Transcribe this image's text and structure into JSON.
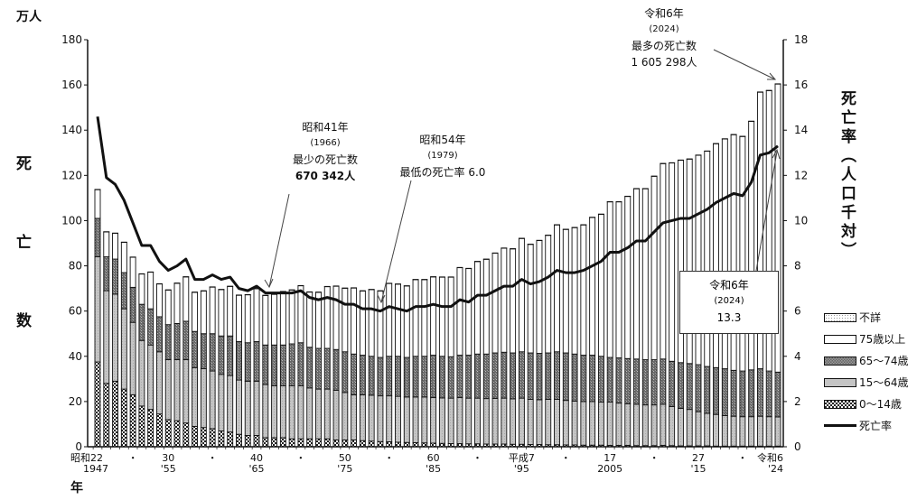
{
  "chart_data": {
    "type": "bar+line",
    "left_axis": {
      "unit_label": "万人",
      "title": "死 亡 数",
      "range": [
        0,
        180
      ],
      "ticks": [
        0,
        20,
        40,
        60,
        80,
        100,
        120,
        140,
        160,
        180
      ]
    },
    "right_axis": {
      "title": "死亡率（人口千対）",
      "range": [
        0,
        18
      ],
      "ticks": [
        0,
        2,
        4,
        6,
        8,
        10,
        12,
        14,
        16,
        18
      ]
    },
    "x_axis_unit": "年",
    "x_tick_labels": [
      {
        "year": 1947,
        "top": "昭和22",
        "bottom": "1947"
      },
      {
        "year": 1951,
        "top": "・",
        "bottom": ""
      },
      {
        "year": 1955,
        "top": "30",
        "bottom": "'55"
      },
      {
        "year": 1960,
        "top": "・",
        "bottom": ""
      },
      {
        "year": 1965,
        "top": "40",
        "bottom": "'65"
      },
      {
        "year": 1970,
        "top": "・",
        "bottom": ""
      },
      {
        "year": 1975,
        "top": "50",
        "bottom": "'75"
      },
      {
        "year": 1980,
        "top": "・",
        "bottom": ""
      },
      {
        "year": 1985,
        "top": "60",
        "bottom": "'85"
      },
      {
        "year": 1990,
        "top": "・",
        "bottom": ""
      },
      {
        "year": 1995,
        "top": "平成7",
        "bottom": "'95"
      },
      {
        "year": 2000,
        "top": "・",
        "bottom": ""
      },
      {
        "year": 2005,
        "top": "17",
        "bottom": "2005"
      },
      {
        "year": 2010,
        "top": "・",
        "bottom": ""
      },
      {
        "year": 2015,
        "top": "27",
        "bottom": "'15"
      },
      {
        "year": 2020,
        "top": "・",
        "bottom": ""
      },
      {
        "year": 2024,
        "top": "令和6",
        "bottom": "'24"
      }
    ],
    "years": [
      1947,
      1948,
      1949,
      1950,
      1951,
      1952,
      1953,
      1954,
      1955,
      1956,
      1957,
      1958,
      1959,
      1960,
      1961,
      1962,
      1963,
      1964,
      1965,
      1966,
      1967,
      1968,
      1969,
      1970,
      1971,
      1972,
      1973,
      1974,
      1975,
      1976,
      1977,
      1978,
      1979,
      1980,
      1981,
      1982,
      1983,
      1984,
      1985,
      1986,
      1987,
      1988,
      1989,
      1990,
      1991,
      1992,
      1993,
      1994,
      1995,
      1996,
      1997,
      1998,
      1999,
      2000,
      2001,
      2002,
      2003,
      2004,
      2005,
      2006,
      2007,
      2008,
      2009,
      2010,
      2011,
      2012,
      2013,
      2014,
      2015,
      2016,
      2017,
      2018,
      2019,
      2020,
      2021,
      2022,
      2023,
      2024
    ],
    "series": [
      {
        "name": "0～14歳",
        "pattern": "checker",
        "values": [
          37.5,
          28,
          29,
          25.5,
          23,
          18,
          16.5,
          14.5,
          12,
          11.5,
          10.5,
          9,
          8.5,
          8,
          7,
          6.5,
          5.5,
          5,
          5,
          4,
          4,
          4,
          3.5,
          3.5,
          3.5,
          3.5,
          3.5,
          3,
          3,
          3,
          2.7,
          2.5,
          2.3,
          2.2,
          2.0,
          1.9,
          1.8,
          1.7,
          1.6,
          1.5,
          1.4,
          1.4,
          1.3,
          1.3,
          1.2,
          1.2,
          1.2,
          1.1,
          1.1,
          1.0,
          1.0,
          0.9,
          0.9,
          0.8,
          0.8,
          0.7,
          0.7,
          0.7,
          0.6,
          0.6,
          0.6,
          0.5,
          0.5,
          0.5,
          0.6,
          0.5,
          0.4,
          0.4,
          0.4,
          0.4,
          0.3,
          0.3,
          0.3,
          0.3,
          0.3,
          0.3,
          0.3,
          0.3
        ]
      },
      {
        "name": "15～64歳",
        "pattern": "light",
        "values": [
          46.5,
          41,
          38.5,
          35.5,
          32,
          29,
          28.5,
          27.5,
          26.5,
          27,
          28,
          26,
          26,
          25.5,
          25,
          25,
          24,
          24,
          24,
          23.5,
          23,
          23,
          23.5,
          23.5,
          22.5,
          22,
          22,
          22,
          21,
          20,
          20.3,
          20.3,
          20.2,
          20.3,
          20.3,
          20.1,
          20.2,
          20.3,
          20.2,
          20.1,
          20.1,
          20.4,
          20.2,
          20.2,
          20.1,
          20.2,
          20.3,
          20.1,
          20.4,
          20,
          19.8,
          20.1,
          20.1,
          19.7,
          19.4,
          19.3,
          19.3,
          19.1,
          19.2,
          18.7,
          18.4,
          18.3,
          18,
          18,
          18.2,
          17.3,
          16.6,
          16.1,
          15.1,
          14.4,
          14,
          13.5,
          13.2,
          13,
          13,
          13.2,
          13,
          12.9
        ]
      },
      {
        "name": "65～74歳",
        "pattern": "dark",
        "values": [
          17,
          15,
          15.5,
          16,
          15.5,
          16,
          16,
          15.5,
          15.5,
          16,
          17,
          16,
          15.5,
          16.5,
          17,
          17.5,
          17,
          17,
          17.5,
          17.5,
          18,
          18,
          18.5,
          19,
          18,
          18,
          18,
          18,
          18,
          18,
          17.5,
          17.2,
          17,
          17.5,
          17.7,
          17.5,
          18,
          18,
          18.7,
          18.4,
          18.3,
          18.7,
          19,
          19.5,
          19.7,
          20.1,
          20.3,
          20.3,
          20.5,
          20.5,
          20.5,
          20.5,
          21,
          21,
          20.8,
          20.5,
          20.5,
          20.2,
          19.7,
          20,
          20,
          20,
          20,
          20,
          20,
          20,
          20.2,
          20.3,
          20.8,
          20.7,
          20.7,
          20.7,
          20.3,
          20.2,
          20.7,
          21,
          20.2,
          19.8
        ]
      },
      {
        "name": "75歳以上",
        "pattern": "white",
        "values": [
          12.7,
          11.0,
          11.4,
          13.4,
          13.3,
          13.4,
          16.2,
          14.5,
          15.3,
          17.8,
          19.6,
          17.3,
          18.9,
          20.6,
          20.5,
          21.9,
          20.5,
          21.2,
          23.4,
          21.9,
          22.4,
          23.6,
          23.8,
          25.2,
          24.4,
          24.8,
          27.3,
          28.0,
          28.1,
          29.2,
          28.4,
          29.5,
          29.4,
          32.2,
          31.9,
          31.6,
          33.9,
          33.9,
          34.6,
          35.0,
          35.2,
          38.7,
          38.3,
          40.9,
          41.9,
          44.1,
          46.0,
          46.0,
          50.1,
          48.0,
          49.9,
          52.0,
          56.1,
          54.6,
          55.9,
          57.6,
          60.9,
          62.8,
          68.8,
          69.0,
          71.7,
          75.3,
          75.6,
          81.1,
          86.4,
          87.7,
          89.5,
          90.4,
          92.6,
          95.2,
          99.0,
          101.6,
          104.2,
          103.7,
          109.9,
          122.3,
          124.0,
          127.4
        ]
      },
      {
        "name": "不詳",
        "pattern": "dotted",
        "values": [
          0.1,
          0.1,
          0.1,
          0.1,
          0.1,
          0.1,
          0.1,
          0.1,
          0.1,
          0.1,
          0.1,
          0.1,
          0.1,
          0.1,
          0.1,
          0.1,
          0.1,
          0.1,
          0.1,
          0.1,
          0.1,
          0.1,
          0.1,
          0.1,
          0.1,
          0.1,
          0.1,
          0.1,
          0.1,
          0.1,
          0.1,
          0.1,
          0.1,
          0.1,
          0.1,
          0.1,
          0.1,
          0.1,
          0.1,
          0.1,
          0.1,
          0.1,
          0.1,
          0.1,
          0.1,
          0.1,
          0.1,
          0.1,
          0.1,
          0.1,
          0.1,
          0.1,
          0.1,
          0.1,
          0.1,
          0.1,
          0.1,
          0.1,
          0.1,
          0.1,
          0.1,
          0.1,
          0.1,
          0.1,
          0.1,
          0.1,
          0.1,
          0.1,
          0.1,
          0.1,
          0.1,
          0.1,
          0.1,
          0.1,
          0.1,
          0.1,
          0.1,
          0.1
        ]
      }
    ],
    "line": {
      "name": "死亡率",
      "axis": "right",
      "values": [
        14.6,
        11.9,
        11.6,
        10.9,
        9.9,
        8.9,
        8.9,
        8.2,
        7.8,
        8.0,
        8.3,
        7.4,
        7.4,
        7.6,
        7.4,
        7.5,
        7.0,
        6.9,
        7.1,
        6.8,
        6.8,
        6.8,
        6.8,
        6.9,
        6.6,
        6.5,
        6.6,
        6.5,
        6.3,
        6.3,
        6.1,
        6.1,
        6.0,
        6.2,
        6.1,
        6.0,
        6.2,
        6.2,
        6.3,
        6.2,
        6.2,
        6.5,
        6.4,
        6.7,
        6.7,
        6.9,
        7.1,
        7.1,
        7.4,
        7.2,
        7.3,
        7.5,
        7.8,
        7.7,
        7.7,
        7.8,
        8.0,
        8.2,
        8.6,
        8.6,
        8.8,
        9.1,
        9.1,
        9.5,
        9.9,
        10.0,
        10.1,
        10.1,
        10.3,
        10.5,
        10.8,
        11.0,
        11.2,
        11.1,
        11.7,
        12.9,
        13.0,
        13.3
      ]
    },
    "legend_order": [
      "不詳",
      "75歳以上",
      "65～74歳",
      "15～64歳",
      "0～14歳",
      "死亡率"
    ],
    "legend_placement": "right",
    "annotations": {
      "min_deaths": {
        "l1": "昭和41年",
        "l2": "(1966)",
        "l3": "最少の死亡数",
        "l4": "670 342人"
      },
      "min_rate": {
        "l1": "昭和54年",
        "l2": "(1979)",
        "l3": "最低の死亡率 6.0"
      },
      "max_deaths": {
        "l1": "令和6年",
        "l2": "(2024)",
        "l3": "最多の死亡数",
        "l4": "1 605 298人"
      },
      "rate_2024": {
        "l1": "令和6年",
        "l2": "(2024)",
        "l3": "13.3"
      }
    }
  }
}
